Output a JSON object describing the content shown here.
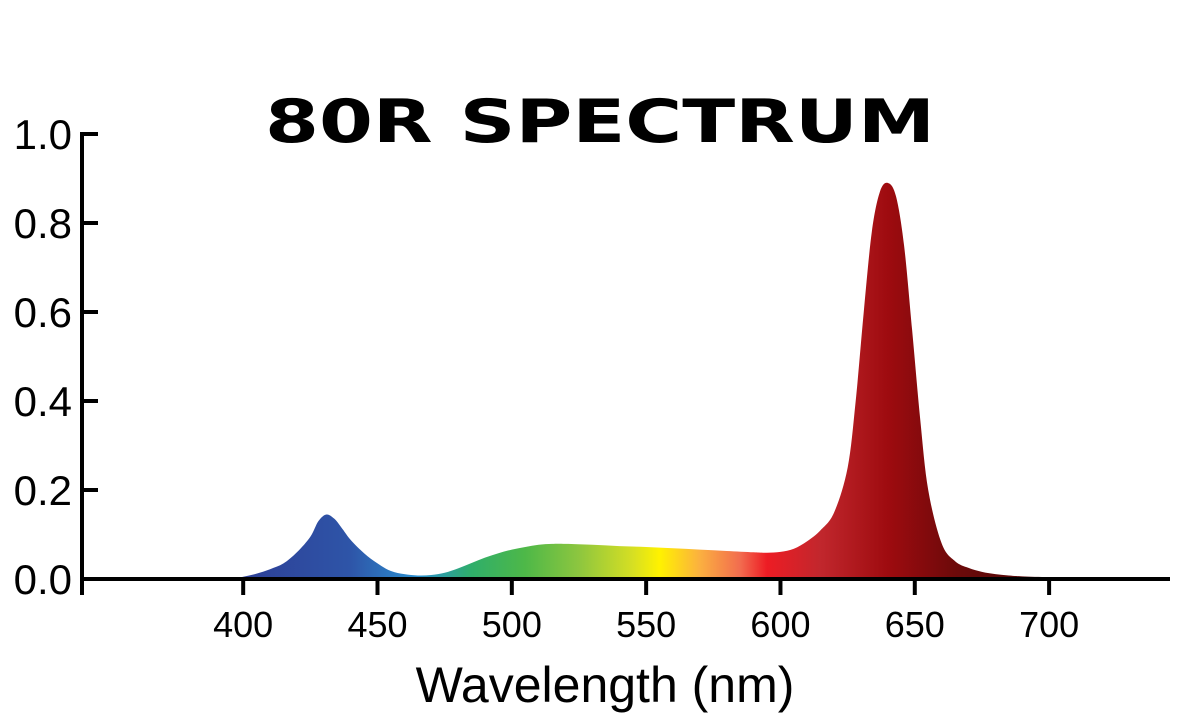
{
  "chart_data": {
    "type": "area",
    "title": "80R SPECTRUM",
    "xlabel": "Wavelength (nm)",
    "ylabel": "",
    "xlim": [
      340,
      745
    ],
    "ylim": [
      0,
      1.0
    ],
    "x_ticks": [
      400,
      450,
      500,
      550,
      600,
      650,
      700
    ],
    "y_ticks": [
      "0.0",
      "0.2",
      "0.4",
      "0.6",
      "0.8",
      "1.0"
    ],
    "grid": false,
    "legend": "none",
    "series": [
      {
        "x": [
          395,
          400,
          405,
          410,
          415,
          420,
          425,
          428,
          431,
          434,
          437,
          440,
          445,
          450,
          455,
          460,
          465,
          470,
          475,
          480,
          485,
          490,
          495,
          500,
          505,
          510,
          515,
          520,
          530,
          540,
          550,
          560,
          570,
          580,
          590,
          595,
          600,
          605,
          610,
          615,
          620,
          625,
          628,
          631,
          634,
          637,
          640,
          643,
          646,
          649,
          652,
          655,
          660,
          665,
          670,
          675,
          680,
          685,
          690,
          700,
          710,
          715
        ],
        "y": [
          0.0,
          0.005,
          0.012,
          0.022,
          0.035,
          0.06,
          0.095,
          0.13,
          0.145,
          0.135,
          0.112,
          0.088,
          0.058,
          0.035,
          0.018,
          0.011,
          0.008,
          0.009,
          0.014,
          0.024,
          0.036,
          0.048,
          0.058,
          0.066,
          0.072,
          0.077,
          0.079,
          0.079,
          0.077,
          0.074,
          0.072,
          0.069,
          0.066,
          0.063,
          0.06,
          0.059,
          0.061,
          0.068,
          0.085,
          0.11,
          0.15,
          0.25,
          0.4,
          0.6,
          0.78,
          0.87,
          0.89,
          0.86,
          0.75,
          0.56,
          0.36,
          0.2,
          0.08,
          0.04,
          0.025,
          0.016,
          0.011,
          0.008,
          0.006,
          0.004,
          0.002,
          0.0
        ]
      }
    ],
    "colors": {
      "axis": "#000000",
      "gradient": [
        {
          "wl": 400,
          "color": "#2d3f96"
        },
        {
          "wl": 440,
          "color": "#2e55a8"
        },
        {
          "wl": 465,
          "color": "#2b8fcf"
        },
        {
          "wl": 485,
          "color": "#2fae6a"
        },
        {
          "wl": 505,
          "color": "#4eb848"
        },
        {
          "wl": 525,
          "color": "#8dc63f"
        },
        {
          "wl": 545,
          "color": "#d6df23"
        },
        {
          "wl": 555,
          "color": "#fff200"
        },
        {
          "wl": 570,
          "color": "#fbb040"
        },
        {
          "wl": 585,
          "color": "#f26c4f"
        },
        {
          "wl": 595,
          "color": "#ed1c24"
        },
        {
          "wl": 615,
          "color": "#c1272d"
        },
        {
          "wl": 640,
          "color": "#9e0b0f"
        },
        {
          "wl": 665,
          "color": "#6d0a0a"
        },
        {
          "wl": 715,
          "color": "#3a0505"
        }
      ]
    }
  }
}
